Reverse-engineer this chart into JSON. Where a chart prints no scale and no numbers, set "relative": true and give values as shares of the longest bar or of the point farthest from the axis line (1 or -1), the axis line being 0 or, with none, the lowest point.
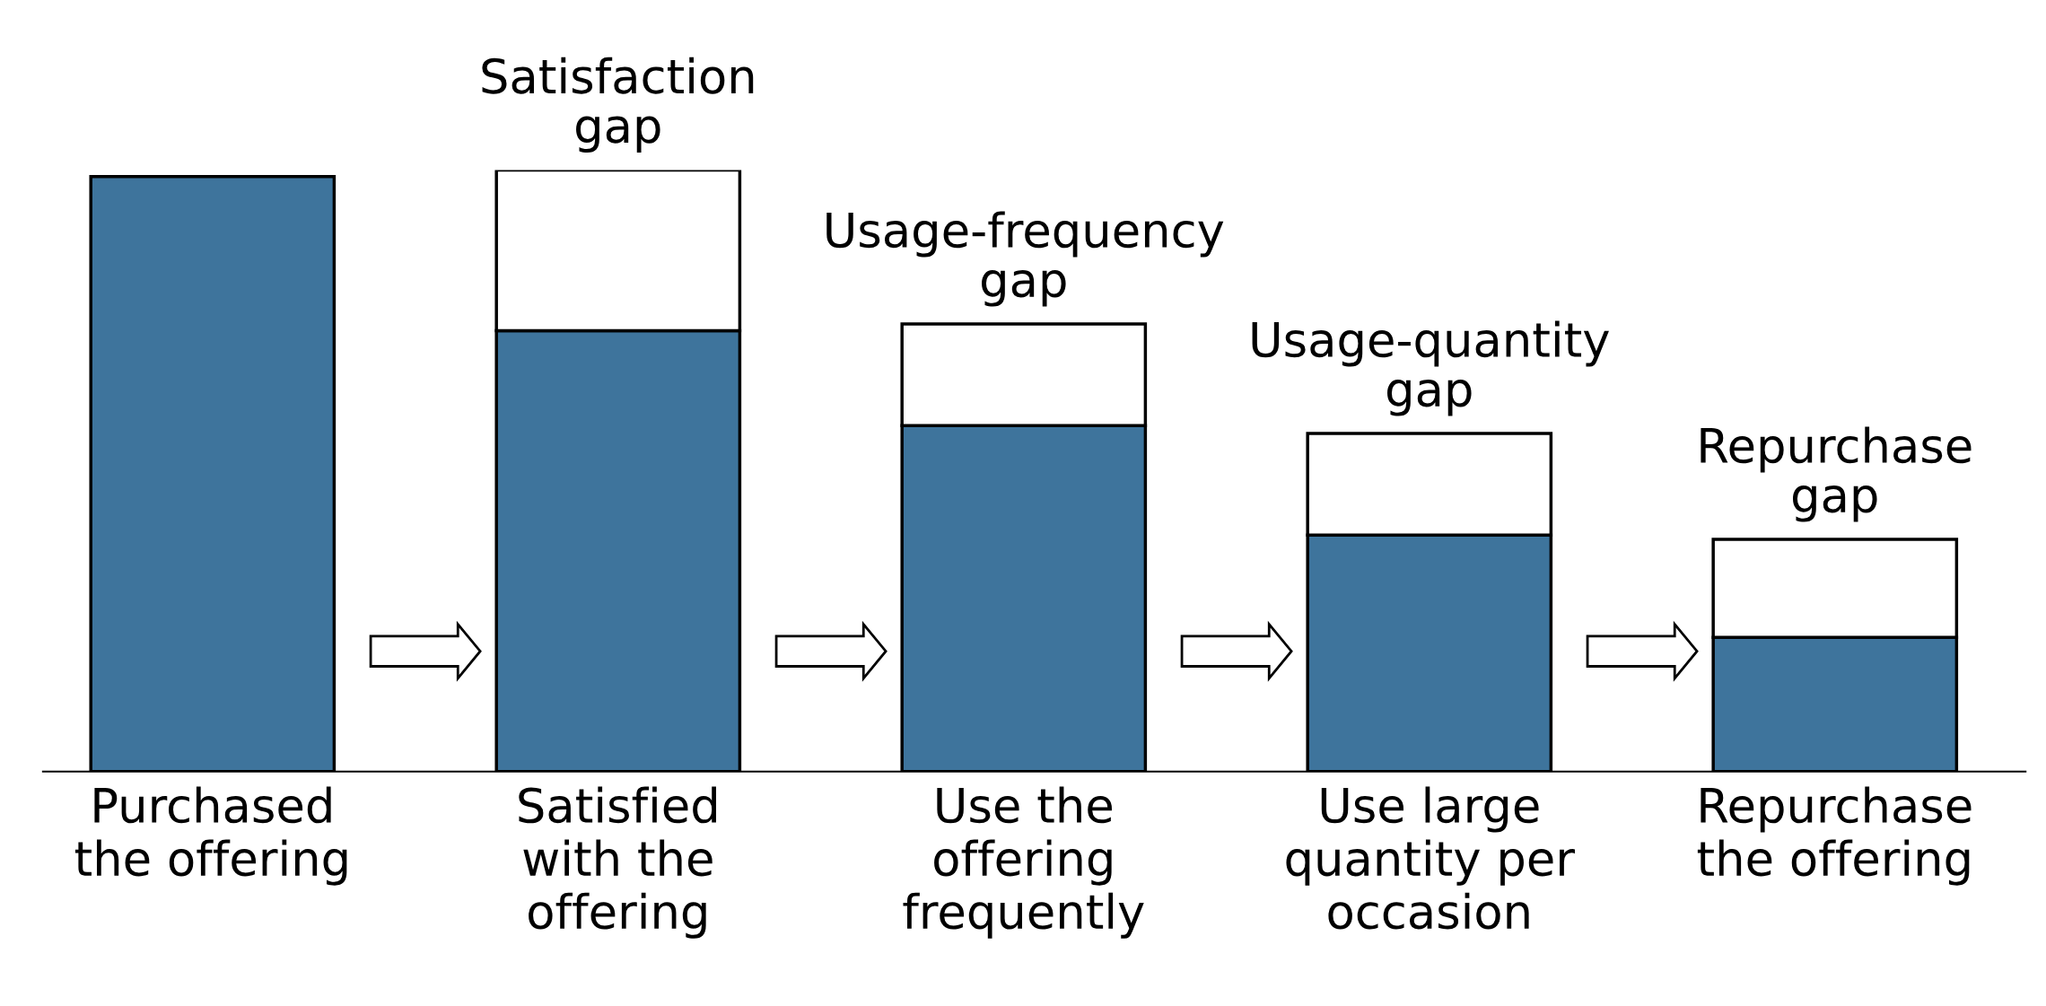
{
  "chart_data": {
    "type": "bar",
    "stacked": true,
    "relative": true,
    "categories": [
      "Purchased\nthe offering",
      "Satisfied\nwith the\noffering",
      "Use the\noffering\nfrequently",
      "Use large\nquantity per\noccasion",
      "Repurchase\nthe offering"
    ],
    "series": [
      {
        "color": "#3e749c",
        "values": [
          0.989,
          0.733,
          0.575,
          0.393,
          0.223
        ]
      },
      {
        "color": "#ffffff",
        "values": [
          null,
          0.267,
          0.169,
          0.169,
          0.163
        ]
      }
    ],
    "annotations": [
      {
        "text": "Satisfaction\ngap",
        "x": "Satisfied\nwith the\noffering",
        "y": 1.0
      },
      {
        "text": "Usage-frequency\ngap",
        "x": "Use the\noffering\nfrequently",
        "y": 0.744
      },
      {
        "text": "Usage-quantity\ngap",
        "x": "Use large\nquantity per\noccasion",
        "y": 0.562
      },
      {
        "text": "Repurchase\ngap",
        "x": "Repurchase\nthe offering",
        "y": 0.386
      }
    ],
    "legend": false,
    "grid": false
  }
}
